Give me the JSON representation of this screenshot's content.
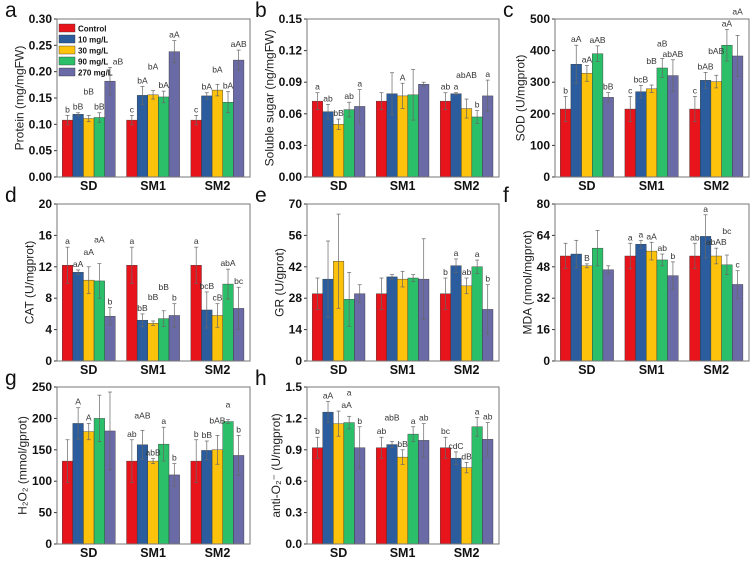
{
  "chart_data": {
    "type": "bar",
    "categories": [
      "SD",
      "SM1",
      "SM2"
    ],
    "legend": {
      "entries": [
        "Control",
        "10 mg/L",
        "30 mg/L",
        "90 mg/L",
        "270 mg/L"
      ],
      "colors": [
        "#e8141c",
        "#2b5d9e",
        "#fcc20c",
        "#2cbf6a",
        "#6a6aa6"
      ],
      "placement": "top-left of panel a"
    },
    "panels": [
      {
        "letter": "a",
        "ylabel": "Protein (mg/mgFW)",
        "ylim": [
          0,
          0.3
        ],
        "step": 0.05,
        "decimals": 2,
        "values": [
          [
            0.108,
            0.119,
            0.111,
            0.113,
            0.182
          ],
          [
            0.108,
            0.155,
            0.156,
            0.152,
            0.238
          ],
          [
            0.108,
            0.154,
            0.165,
            0.142,
            0.222
          ]
        ],
        "errors": [
          [
            0.009,
            0.003,
            0.006,
            0.009,
            0.026
          ],
          [
            0.009,
            0.017,
            0.008,
            0.011,
            0.021
          ],
          [
            0.009,
            0.006,
            0.011,
            0.02,
            0.019
          ]
        ],
        "labels": [
          [
            "b",
            "bB",
            "bB",
            "bB",
            "aB"
          ],
          [
            "c",
            "bA",
            "bA",
            "bA",
            "aA"
          ],
          [
            "c",
            "bA",
            "bA",
            "bA",
            "aAB"
          ]
        ]
      },
      {
        "letter": "b",
        "ylabel": "Soluble sugar (ng/mgFW)",
        "ylim": [
          0,
          0.15
        ],
        "step": 0.03,
        "decimals": 2,
        "values": [
          [
            0.072,
            0.062,
            0.05,
            0.064,
            0.067
          ],
          [
            0.072,
            0.079,
            0.077,
            0.078,
            0.088
          ],
          [
            0.072,
            0.079,
            0.065,
            0.057,
            0.077
          ]
        ],
        "errors": [
          [
            0.008,
            0.007,
            0.005,
            0.007,
            0.016
          ],
          [
            0.008,
            0.02,
            0.012,
            0.024,
            0.002
          ],
          [
            0.008,
            0.001,
            0.009,
            0.006,
            0.015
          ]
        ],
        "labels": [
          [
            "a",
            "ab",
            "bB",
            "ab",
            "a"
          ],
          [
            "",
            "",
            "A",
            "",
            ""
          ],
          [
            "ab",
            "a",
            "abAB",
            "b",
            "a"
          ]
        ]
      },
      {
        "letter": "c",
        "ylabel": "SOD (U/mgprot)",
        "ylim": [
          0,
          500
        ],
        "step": 100,
        "decimals": 0,
        "values": [
          [
            215,
            357,
            328,
            390,
            252
          ],
          [
            215,
            270,
            279,
            345,
            321
          ],
          [
            215,
            306,
            302,
            417,
            383
          ]
        ],
        "errors": [
          [
            40,
            60,
            25,
            25,
            15
          ],
          [
            40,
            20,
            12,
            30,
            50
          ],
          [
            40,
            25,
            20,
            50,
            65
          ]
        ],
        "labels": [
          [
            "b",
            "aA",
            "aA",
            "aAB",
            "bB"
          ],
          [
            "c",
            "bcB",
            "bB",
            "aB",
            "abAB"
          ],
          [
            "c",
            "bAB",
            "bAB",
            "aA",
            "aA"
          ]
        ]
      },
      {
        "letter": "d",
        "ylabel": "CAT (U/mgprot)",
        "ylim": [
          0,
          20
        ],
        "step": 4,
        "decimals": 0,
        "values": [
          [
            12.2,
            11.3,
            10.3,
            10.2,
            5.7
          ],
          [
            12.2,
            5.2,
            4.8,
            5.4,
            5.8
          ],
          [
            12.2,
            6.5,
            5.8,
            9.8,
            6.7
          ]
        ],
        "errors": [
          [
            2.3,
            0.3,
            1.7,
            2.2,
            1.1
          ],
          [
            2.3,
            0.8,
            0.3,
            1.0,
            1.5
          ],
          [
            2.3,
            2.3,
            1.5,
            1.9,
            2.7
          ]
        ],
        "labels": [
          [
            "a",
            "aA",
            "aA",
            "aA",
            "b"
          ],
          [
            "a",
            "bB",
            "bB",
            "bB",
            "b"
          ],
          [
            "a",
            "bcB",
            "cB",
            "abA",
            "bc"
          ]
        ]
      },
      {
        "letter": "e",
        "ylabel": "GR (U/gprot)",
        "ylim": [
          0,
          70
        ],
        "step": 14,
        "decimals": 0,
        "values": [
          [
            30,
            36.5,
            44.5,
            27.5,
            30
          ],
          [
            30,
            37.5,
            36.5,
            37,
            36.5
          ],
          [
            30,
            42.5,
            33.5,
            42,
            23
          ]
        ],
        "errors": [
          [
            7,
            17,
            21,
            12,
            4
          ],
          [
            7,
            1,
            3.5,
            1.5,
            18
          ],
          [
            7,
            3,
            3.5,
            3,
            11
          ]
        ],
        "labels": [
          [
            "",
            "",
            "",
            "",
            ""
          ],
          [
            "",
            "",
            "",
            "",
            ""
          ],
          [
            "b",
            "a",
            "ab",
            "a",
            "b"
          ]
        ]
      },
      {
        "letter": "f",
        "ylabel": "MDA (nmol/mgprot)",
        "ylim": [
          0,
          80
        ],
        "step": 16,
        "decimals": 0,
        "values": [
          [
            53.5,
            54.5,
            48.5,
            57.5,
            46.5
          ],
          [
            53.5,
            59.5,
            56,
            51.5,
            43.5
          ],
          [
            53.5,
            63.5,
            53.5,
            49,
            39
          ]
        ],
        "errors": [
          [
            6.5,
            7,
            1,
            9,
            2
          ],
          [
            6.5,
            2,
            4.5,
            3,
            7
          ],
          [
            6.5,
            11,
            4,
            5,
            7
          ]
        ],
        "labels": [
          [
            "",
            "",
            "B",
            "",
            ""
          ],
          [
            "a",
            "a",
            "aA",
            "ab",
            "b"
          ],
          [
            "ab",
            "a",
            "abAB",
            "bc",
            "c"
          ]
        ]
      },
      {
        "letter": "g",
        "ylabel": "H₂O₂ (mmol/gprot)",
        "ylim": [
          0,
          250
        ],
        "step": 50,
        "decimals": 0,
        "values": [
          [
            132,
            192,
            179,
            200,
            180
          ],
          [
            132,
            158,
            132,
            159,
            110
          ],
          [
            132,
            149,
            150,
            195,
            141
          ]
        ],
        "errors": [
          [
            34,
            25,
            13,
            37,
            62
          ],
          [
            34,
            23,
            4,
            27,
            18
          ],
          [
            34,
            15,
            23,
            3,
            32
          ]
        ],
        "labels": [
          [
            "",
            "A",
            "A",
            "",
            ""
          ],
          [
            "ab",
            "aAB",
            "abB",
            "a",
            "b"
          ],
          [
            "b",
            "bB",
            "bAB",
            "a",
            "b"
          ]
        ]
      },
      {
        "letter": "h",
        "ylabel": "anti-O₂⁻ (U/mgprot)",
        "ylim": [
          0,
          1.5
        ],
        "step": 0.3,
        "decimals": 1,
        "values": [
          [
            0.92,
            1.26,
            1.15,
            1.16,
            0.92
          ],
          [
            0.92,
            0.95,
            0.83,
            1.05,
            0.99
          ],
          [
            0.92,
            0.82,
            0.73,
            1.12,
            1.0
          ]
        ],
        "errors": [
          [
            0.1,
            0.1,
            0.12,
            0.06,
            0.2
          ],
          [
            0.1,
            0.03,
            0.07,
            0.07,
            0.16
          ],
          [
            0.1,
            0.06,
            0.05,
            0.09,
            0.16
          ]
        ],
        "labels": [
          [
            "b",
            "aA",
            "aA",
            "a",
            "b"
          ],
          [
            "ab",
            "abB",
            "bB",
            "a",
            "ab"
          ],
          [
            "bc",
            "cdC",
            "dB",
            "a",
            "ab"
          ]
        ]
      }
    ]
  }
}
